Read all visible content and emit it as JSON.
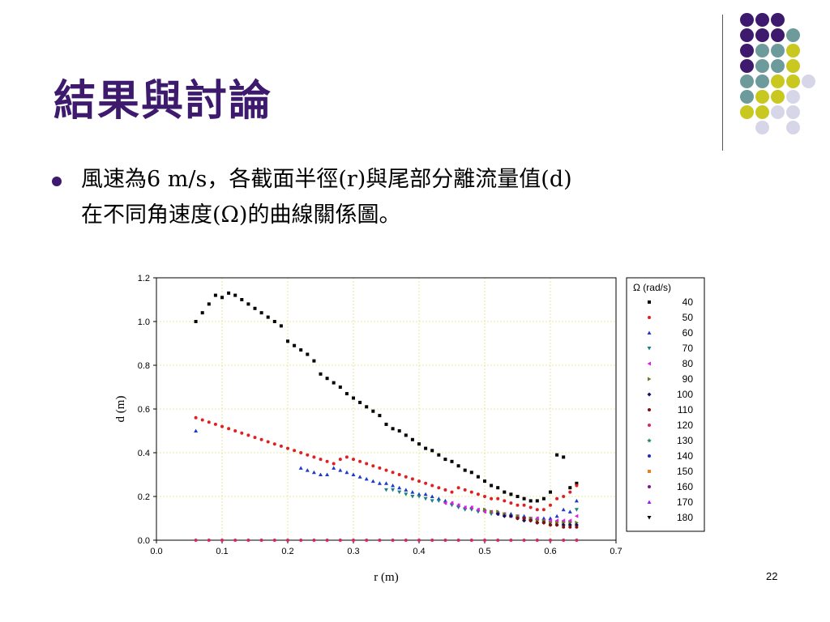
{
  "slide": {
    "title": "結果與討論",
    "bullet_line1": "風速為6 m/s，各截面半徑(r)與尾部分離流量值(d)",
    "bullet_line2": "在不同角速度(Ω)的曲線關係圖。",
    "page_number": "22"
  },
  "decor_colors": {
    "purple": "#3d1a6e",
    "teal": "#6d9b9b",
    "yellow": "#c8c820",
    "lavender": "#d6d6e8"
  },
  "chart_data": {
    "type": "scatter",
    "xlabel": "r (m)",
    "ylabel": "d (m)",
    "xlim": [
      0.0,
      0.7
    ],
    "ylim": [
      0.0,
      1.2
    ],
    "xticks": [
      "0.0",
      "0.1",
      "0.2",
      "0.3",
      "0.4",
      "0.5",
      "0.6",
      "0.7"
    ],
    "yticks": [
      "0.0",
      "0.2",
      "0.4",
      "0.6",
      "0.8",
      "1.0",
      "1.2"
    ],
    "grid": true,
    "legend_title": "Ω (rad/s)",
    "legend_position": "right",
    "series": [
      {
        "name": "40",
        "color": "#000000",
        "marker": "square",
        "x": [
          0.06,
          0.07,
          0.08,
          0.09,
          0.1,
          0.11,
          0.12,
          0.13,
          0.14,
          0.15,
          0.16,
          0.17,
          0.18,
          0.19,
          0.2,
          0.21,
          0.22,
          0.23,
          0.24,
          0.25,
          0.26,
          0.27,
          0.28,
          0.29,
          0.3,
          0.31,
          0.32,
          0.33,
          0.34,
          0.35,
          0.36,
          0.37,
          0.38,
          0.39,
          0.4,
          0.41,
          0.42,
          0.43,
          0.44,
          0.45,
          0.46,
          0.47,
          0.48,
          0.49,
          0.5,
          0.51,
          0.52,
          0.53,
          0.54,
          0.55,
          0.56,
          0.57,
          0.58,
          0.59,
          0.6,
          0.61,
          0.62,
          0.63,
          0.64
        ],
        "y": [
          1.0,
          1.04,
          1.08,
          1.12,
          1.11,
          1.13,
          1.12,
          1.1,
          1.08,
          1.06,
          1.04,
          1.02,
          1.0,
          0.98,
          0.91,
          0.89,
          0.87,
          0.85,
          0.82,
          0.76,
          0.74,
          0.72,
          0.7,
          0.67,
          0.65,
          0.63,
          0.61,
          0.59,
          0.57,
          0.53,
          0.51,
          0.5,
          0.48,
          0.46,
          0.44,
          0.42,
          0.41,
          0.39,
          0.37,
          0.36,
          0.34,
          0.32,
          0.31,
          0.29,
          0.27,
          0.25,
          0.24,
          0.22,
          0.21,
          0.2,
          0.19,
          0.18,
          0.18,
          0.19,
          0.22,
          0.39,
          0.38,
          0.24,
          0.26
        ]
      },
      {
        "name": "50",
        "color": "#e02020",
        "marker": "circle",
        "x": [
          0.06,
          0.07,
          0.08,
          0.09,
          0.1,
          0.11,
          0.12,
          0.13,
          0.14,
          0.15,
          0.16,
          0.17,
          0.18,
          0.19,
          0.2,
          0.21,
          0.22,
          0.23,
          0.24,
          0.25,
          0.26,
          0.27,
          0.28,
          0.29,
          0.3,
          0.31,
          0.32,
          0.33,
          0.34,
          0.35,
          0.36,
          0.37,
          0.38,
          0.39,
          0.4,
          0.41,
          0.42,
          0.43,
          0.44,
          0.45,
          0.46,
          0.47,
          0.48,
          0.49,
          0.5,
          0.51,
          0.52,
          0.53,
          0.54,
          0.55,
          0.56,
          0.57,
          0.58,
          0.59,
          0.6,
          0.61,
          0.62,
          0.63,
          0.64
        ],
        "y": [
          0.56,
          0.55,
          0.54,
          0.53,
          0.52,
          0.51,
          0.5,
          0.49,
          0.48,
          0.47,
          0.46,
          0.45,
          0.44,
          0.43,
          0.42,
          0.41,
          0.4,
          0.39,
          0.38,
          0.37,
          0.36,
          0.35,
          0.37,
          0.38,
          0.37,
          0.36,
          0.35,
          0.34,
          0.33,
          0.32,
          0.31,
          0.3,
          0.29,
          0.28,
          0.27,
          0.26,
          0.25,
          0.24,
          0.23,
          0.22,
          0.24,
          0.23,
          0.22,
          0.21,
          0.2,
          0.19,
          0.19,
          0.18,
          0.17,
          0.16,
          0.16,
          0.15,
          0.14,
          0.14,
          0.16,
          0.19,
          0.2,
          0.22,
          0.25
        ]
      },
      {
        "name": "60",
        "color": "#1a3acc",
        "marker": "triangle-up",
        "x": [
          0.06,
          0.22,
          0.23,
          0.24,
          0.25,
          0.26,
          0.27,
          0.28,
          0.29,
          0.3,
          0.31,
          0.32,
          0.33,
          0.34,
          0.35,
          0.36,
          0.37,
          0.38,
          0.39,
          0.4,
          0.41,
          0.42,
          0.43,
          0.44,
          0.45,
          0.46,
          0.47,
          0.48,
          0.49,
          0.5,
          0.51,
          0.52,
          0.53,
          0.54,
          0.55,
          0.56,
          0.57,
          0.58,
          0.59,
          0.6,
          0.61,
          0.62,
          0.63,
          0.64
        ],
        "y": [
          0.5,
          0.33,
          0.32,
          0.31,
          0.3,
          0.3,
          0.33,
          0.32,
          0.31,
          0.3,
          0.29,
          0.28,
          0.27,
          0.26,
          0.26,
          0.25,
          0.24,
          0.23,
          0.22,
          0.21,
          0.21,
          0.2,
          0.19,
          0.18,
          0.17,
          0.16,
          0.15,
          0.15,
          0.14,
          0.14,
          0.13,
          0.13,
          0.12,
          0.12,
          0.11,
          0.11,
          0.1,
          0.1,
          0.1,
          0.1,
          0.11,
          0.14,
          0.13,
          0.18
        ]
      },
      {
        "name": "70",
        "color": "#1a8080",
        "marker": "triangle-down",
        "x": [
          0.35,
          0.36,
          0.37,
          0.38,
          0.39,
          0.4,
          0.41,
          0.42,
          0.43,
          0.44,
          0.45,
          0.46,
          0.47,
          0.48,
          0.49,
          0.5,
          0.51,
          0.52,
          0.53,
          0.54,
          0.55,
          0.56,
          0.57,
          0.58,
          0.59,
          0.6,
          0.61,
          0.62,
          0.63,
          0.64
        ],
        "y": [
          0.23,
          0.23,
          0.22,
          0.21,
          0.2,
          0.2,
          0.19,
          0.18,
          0.18,
          0.17,
          0.16,
          0.15,
          0.14,
          0.14,
          0.13,
          0.13,
          0.12,
          0.12,
          0.11,
          0.11,
          0.1,
          0.1,
          0.09,
          0.09,
          0.08,
          0.08,
          0.08,
          0.08,
          0.08,
          0.14
        ]
      },
      {
        "name": "80",
        "color": "#e020e0",
        "marker": "triangle-left",
        "x": [
          0.44,
          0.45,
          0.46,
          0.47,
          0.48,
          0.49,
          0.5,
          0.51,
          0.52,
          0.53,
          0.54,
          0.55,
          0.56,
          0.57,
          0.58,
          0.59,
          0.6,
          0.61,
          0.62,
          0.63,
          0.64
        ],
        "y": [
          0.17,
          0.17,
          0.16,
          0.15,
          0.15,
          0.14,
          0.13,
          0.13,
          0.12,
          0.12,
          0.11,
          0.11,
          0.1,
          0.1,
          0.1,
          0.09,
          0.09,
          0.09,
          0.09,
          0.09,
          0.11
        ]
      },
      {
        "name": "90",
        "color": "#6b7a1a",
        "marker": "triangle-right",
        "x": [
          0.5,
          0.51,
          0.52,
          0.53,
          0.54,
          0.55,
          0.56,
          0.57,
          0.58,
          0.59,
          0.6,
          0.61,
          0.62,
          0.63,
          0.64
        ],
        "y": [
          0.14,
          0.13,
          0.13,
          0.12,
          0.11,
          0.11,
          0.1,
          0.1,
          0.09,
          0.09,
          0.08,
          0.08,
          0.08,
          0.08,
          0.08
        ]
      },
      {
        "name": "100",
        "color": "#101060",
        "marker": "diamond",
        "x": [
          0.52,
          0.53,
          0.54,
          0.55,
          0.56,
          0.57,
          0.58,
          0.59,
          0.6,
          0.61,
          0.62,
          0.63,
          0.64
        ],
        "y": [
          0.12,
          0.11,
          0.11,
          0.1,
          0.09,
          0.09,
          0.08,
          0.08,
          0.07,
          0.07,
          0.07,
          0.07,
          0.07
        ]
      },
      {
        "name": "110",
        "color": "#801010",
        "marker": "circle",
        "x": [
          0.55,
          0.56,
          0.57,
          0.58,
          0.59,
          0.6,
          0.61,
          0.62,
          0.63,
          0.64
        ],
        "y": [
          0.1,
          0.1,
          0.09,
          0.08,
          0.08,
          0.07,
          0.07,
          0.06,
          0.06,
          0.06
        ]
      },
      {
        "name": "120",
        "color": "#e0206a",
        "marker": "circle",
        "x": [
          0.06,
          0.08,
          0.1,
          0.12,
          0.14,
          0.16,
          0.18,
          0.2,
          0.22,
          0.24,
          0.26,
          0.28,
          0.3,
          0.32,
          0.34,
          0.36,
          0.38,
          0.4,
          0.42,
          0.44,
          0.46,
          0.48,
          0.5,
          0.52,
          0.54,
          0.56,
          0.58,
          0.6,
          0.62,
          0.64
        ],
        "y": [
          0.0,
          0.0,
          0.0,
          0.0,
          0.0,
          0.0,
          0.0,
          0.0,
          0.0,
          0.0,
          0.0,
          0.0,
          0.0,
          0.0,
          0.0,
          0.0,
          0.0,
          0.0,
          0.0,
          0.0,
          0.0,
          0.0,
          0.0,
          0.0,
          0.0,
          0.0,
          0.0,
          0.0,
          0.0,
          0.0
        ]
      },
      {
        "name": "130",
        "color": "#1a8a4a",
        "marker": "star",
        "x": [],
        "y": []
      },
      {
        "name": "140",
        "color": "#1a2acc",
        "marker": "circle",
        "x": [],
        "y": []
      },
      {
        "name": "150",
        "color": "#e88020",
        "marker": "square",
        "x": [],
        "y": []
      },
      {
        "name": "160",
        "color": "#7a1a8a",
        "marker": "circle",
        "x": [],
        "y": []
      },
      {
        "name": "170",
        "color": "#9a20e0",
        "marker": "triangle-up",
        "x": [],
        "y": []
      },
      {
        "name": "180",
        "color": "#000000",
        "marker": "triangle-down",
        "x": [],
        "y": []
      }
    ]
  }
}
